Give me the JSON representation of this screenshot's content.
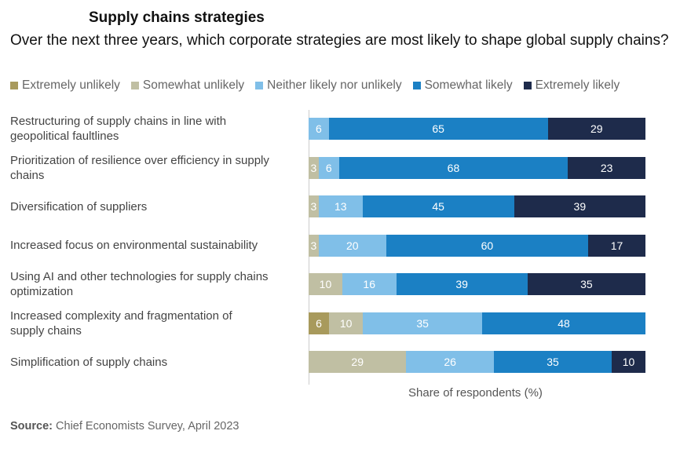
{
  "chart_data": {
    "type": "bar",
    "orientation": "horizontal",
    "stacked": true,
    "title": "Supply chains strategies",
    "subtitle": "Over the next three years, which corporate strategies are most likely to shape global supply chains?",
    "xlabel": "Share of respondents (%)",
    "legend_position": "top",
    "categories": [
      "Restructuring of supply chains in line with geopolitical faultlines",
      "Prioritization of resilience over efficiency in supply chains",
      "Diversification of suppliers",
      "Increased focus on environmental sustainability",
      "Using AI and other technologies for supply chains optimization",
      "Increased complexity and fragmentation of supply chains",
      "Simplification of supply chains"
    ],
    "series": [
      {
        "name": "Extremely unlikely",
        "color": "#a89a5c",
        "values": [
          0,
          0,
          0,
          0,
          0,
          6,
          0
        ]
      },
      {
        "name": "Somewhat unlikely",
        "color": "#c0bfa3",
        "values": [
          0,
          3,
          3,
          3,
          10,
          10,
          29
        ]
      },
      {
        "name": "Neither likely nor unlikely",
        "color": "#80bfe8",
        "values": [
          6,
          6,
          13,
          20,
          16,
          35,
          26
        ]
      },
      {
        "name": "Somewhat likely",
        "color": "#1b80c4",
        "values": [
          65,
          68,
          45,
          60,
          39,
          48,
          35
        ]
      },
      {
        "name": "Extremely likely",
        "color": "#1e2b4b",
        "values": [
          29,
          23,
          39,
          17,
          35,
          0,
          10
        ]
      }
    ]
  },
  "source": {
    "label": "Source:",
    "text": " Chief Economists Survey, April 2023"
  }
}
